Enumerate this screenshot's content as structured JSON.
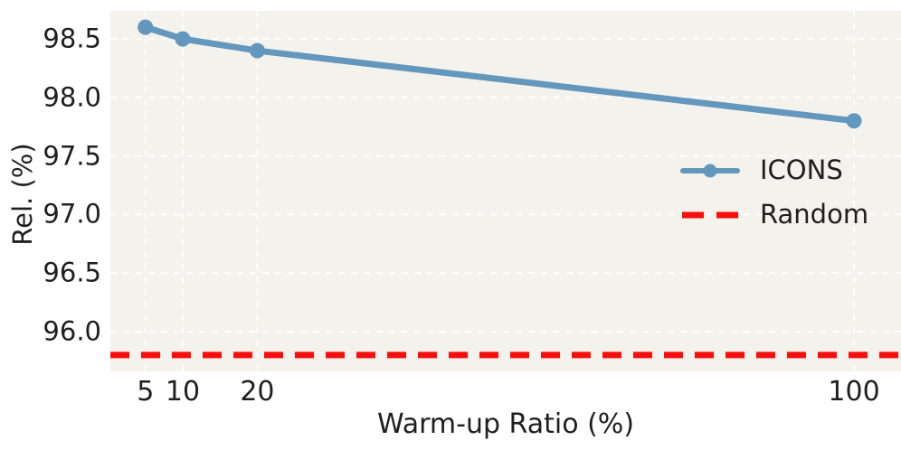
{
  "chart_data": {
    "type": "line",
    "title": "",
    "xlabel": "Warm-up Ratio (%)",
    "ylabel": "Rel. (%)",
    "series": [
      {
        "name": "ICONS",
        "kind": "line-with-markers",
        "x": [
          5,
          10,
          20,
          100
        ],
        "values": [
          98.6,
          98.5,
          98.4,
          97.8
        ],
        "color": "#6497bd"
      },
      {
        "name": "Random",
        "kind": "hline",
        "value": 95.8,
        "color": "#fa0d0d",
        "dash": "dashed"
      }
    ],
    "xlim": [
      0.3,
      106.3
    ],
    "ylim": [
      95.66,
      98.74
    ],
    "xticks": {
      "values": [
        5,
        10,
        20,
        100
      ],
      "labels": [
        "5",
        "10",
        "20",
        "100"
      ]
    },
    "yticks": {
      "values": [
        96.0,
        96.5,
        97.0,
        97.5,
        98.0,
        98.5
      ],
      "labels": [
        "96.0",
        "96.5",
        "97.0",
        "97.5",
        "98.0",
        "98.5"
      ]
    },
    "grid": true,
    "legend_position": "center-right",
    "colors": {
      "plot_bg": "#f4f2ec",
      "grid": "#ffffff",
      "text": "#1f1f1f"
    }
  }
}
